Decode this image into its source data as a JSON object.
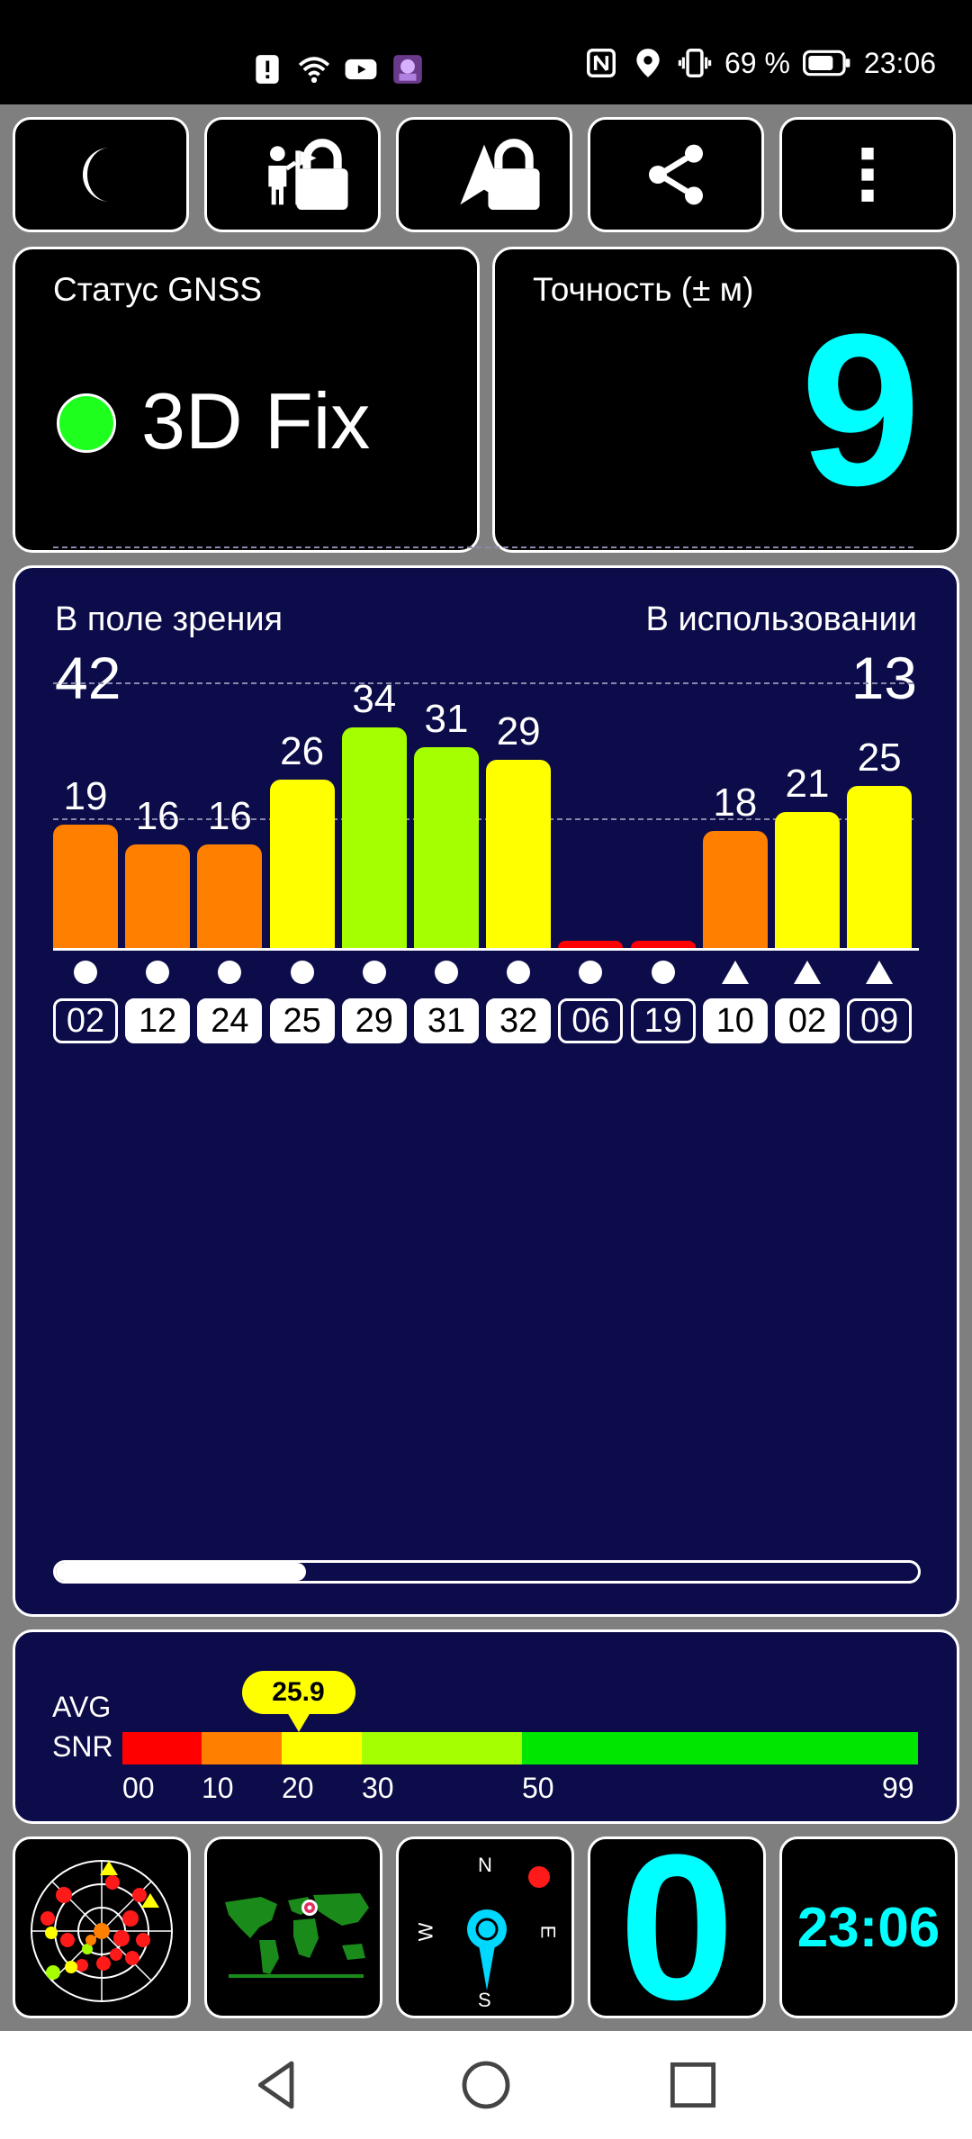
{
  "status_bar": {
    "battery": "69 %",
    "time": "23:06"
  },
  "toolbar": {
    "buttons": [
      {
        "icon": "moon-icon",
        "locked": false
      },
      {
        "icon": "person-flag-icon",
        "locked": true
      },
      {
        "icon": "navigation-arrow-icon",
        "locked": true
      },
      {
        "icon": "share-icon",
        "locked": false
      },
      {
        "icon": "more-vertical-icon",
        "locked": false
      }
    ]
  },
  "gnss_status": {
    "label": "Статус GNSS",
    "value": "3D Fix",
    "indicator_color": "#1eff1e"
  },
  "accuracy": {
    "label": "Точность (± м)",
    "value": "9"
  },
  "satellites": {
    "in_view_label": "В поле зрения",
    "in_view": "42",
    "in_use_label": "В использовании",
    "in_use": "13"
  },
  "chart_data": {
    "type": "bar",
    "categories": [
      "02",
      "12",
      "24",
      "25",
      "29",
      "31",
      "32",
      "06",
      "19",
      "10",
      "02",
      "09"
    ],
    "values": [
      19,
      16,
      16,
      26,
      34,
      31,
      29,
      0,
      0,
      18,
      21,
      25
    ],
    "labels": [
      "19",
      "16",
      "16",
      "26",
      "34",
      "31",
      "29",
      "",
      "",
      "18",
      "21",
      "25"
    ],
    "constellation_marker": [
      "dot",
      "dot",
      "dot",
      "dot",
      "dot",
      "dot",
      "dot",
      "dot",
      "dot",
      "triangle",
      "triangle",
      "triangle"
    ],
    "used_in_fix": [
      false,
      true,
      true,
      true,
      true,
      true,
      true,
      false,
      false,
      true,
      true,
      false
    ],
    "ylim": [
      0,
      50
    ],
    "grid": true,
    "colors": {
      "lt10": "#ff0000",
      "lt20": "#ff8000",
      "lt30": "#ffff00",
      "lt50": "#a6ff00",
      "ge50": "#00e600"
    }
  },
  "scroll": {
    "position": 0.29
  },
  "avg_snr": {
    "label_top": "AVG",
    "label_bottom": "SNR",
    "value": "25.9",
    "value_num": 25.9,
    "scale_ticks": [
      "00",
      "10",
      "20",
      "30",
      "50",
      "99"
    ],
    "segments": [
      {
        "from": 0,
        "to": 10,
        "color": "#ff0000"
      },
      {
        "from": 10,
        "to": 20,
        "color": "#ff8000"
      },
      {
        "from": 20,
        "to": 30,
        "color": "#ffff00"
      },
      {
        "from": 30,
        "to": 50,
        "color": "#a6ff00"
      },
      {
        "from": 50,
        "to": 99,
        "color": "#00e600"
      }
    ]
  },
  "widgets": {
    "compass": {
      "n": "N",
      "s": "S",
      "e": "E",
      "w": "W"
    },
    "speed": "0",
    "clock": "23:06"
  }
}
